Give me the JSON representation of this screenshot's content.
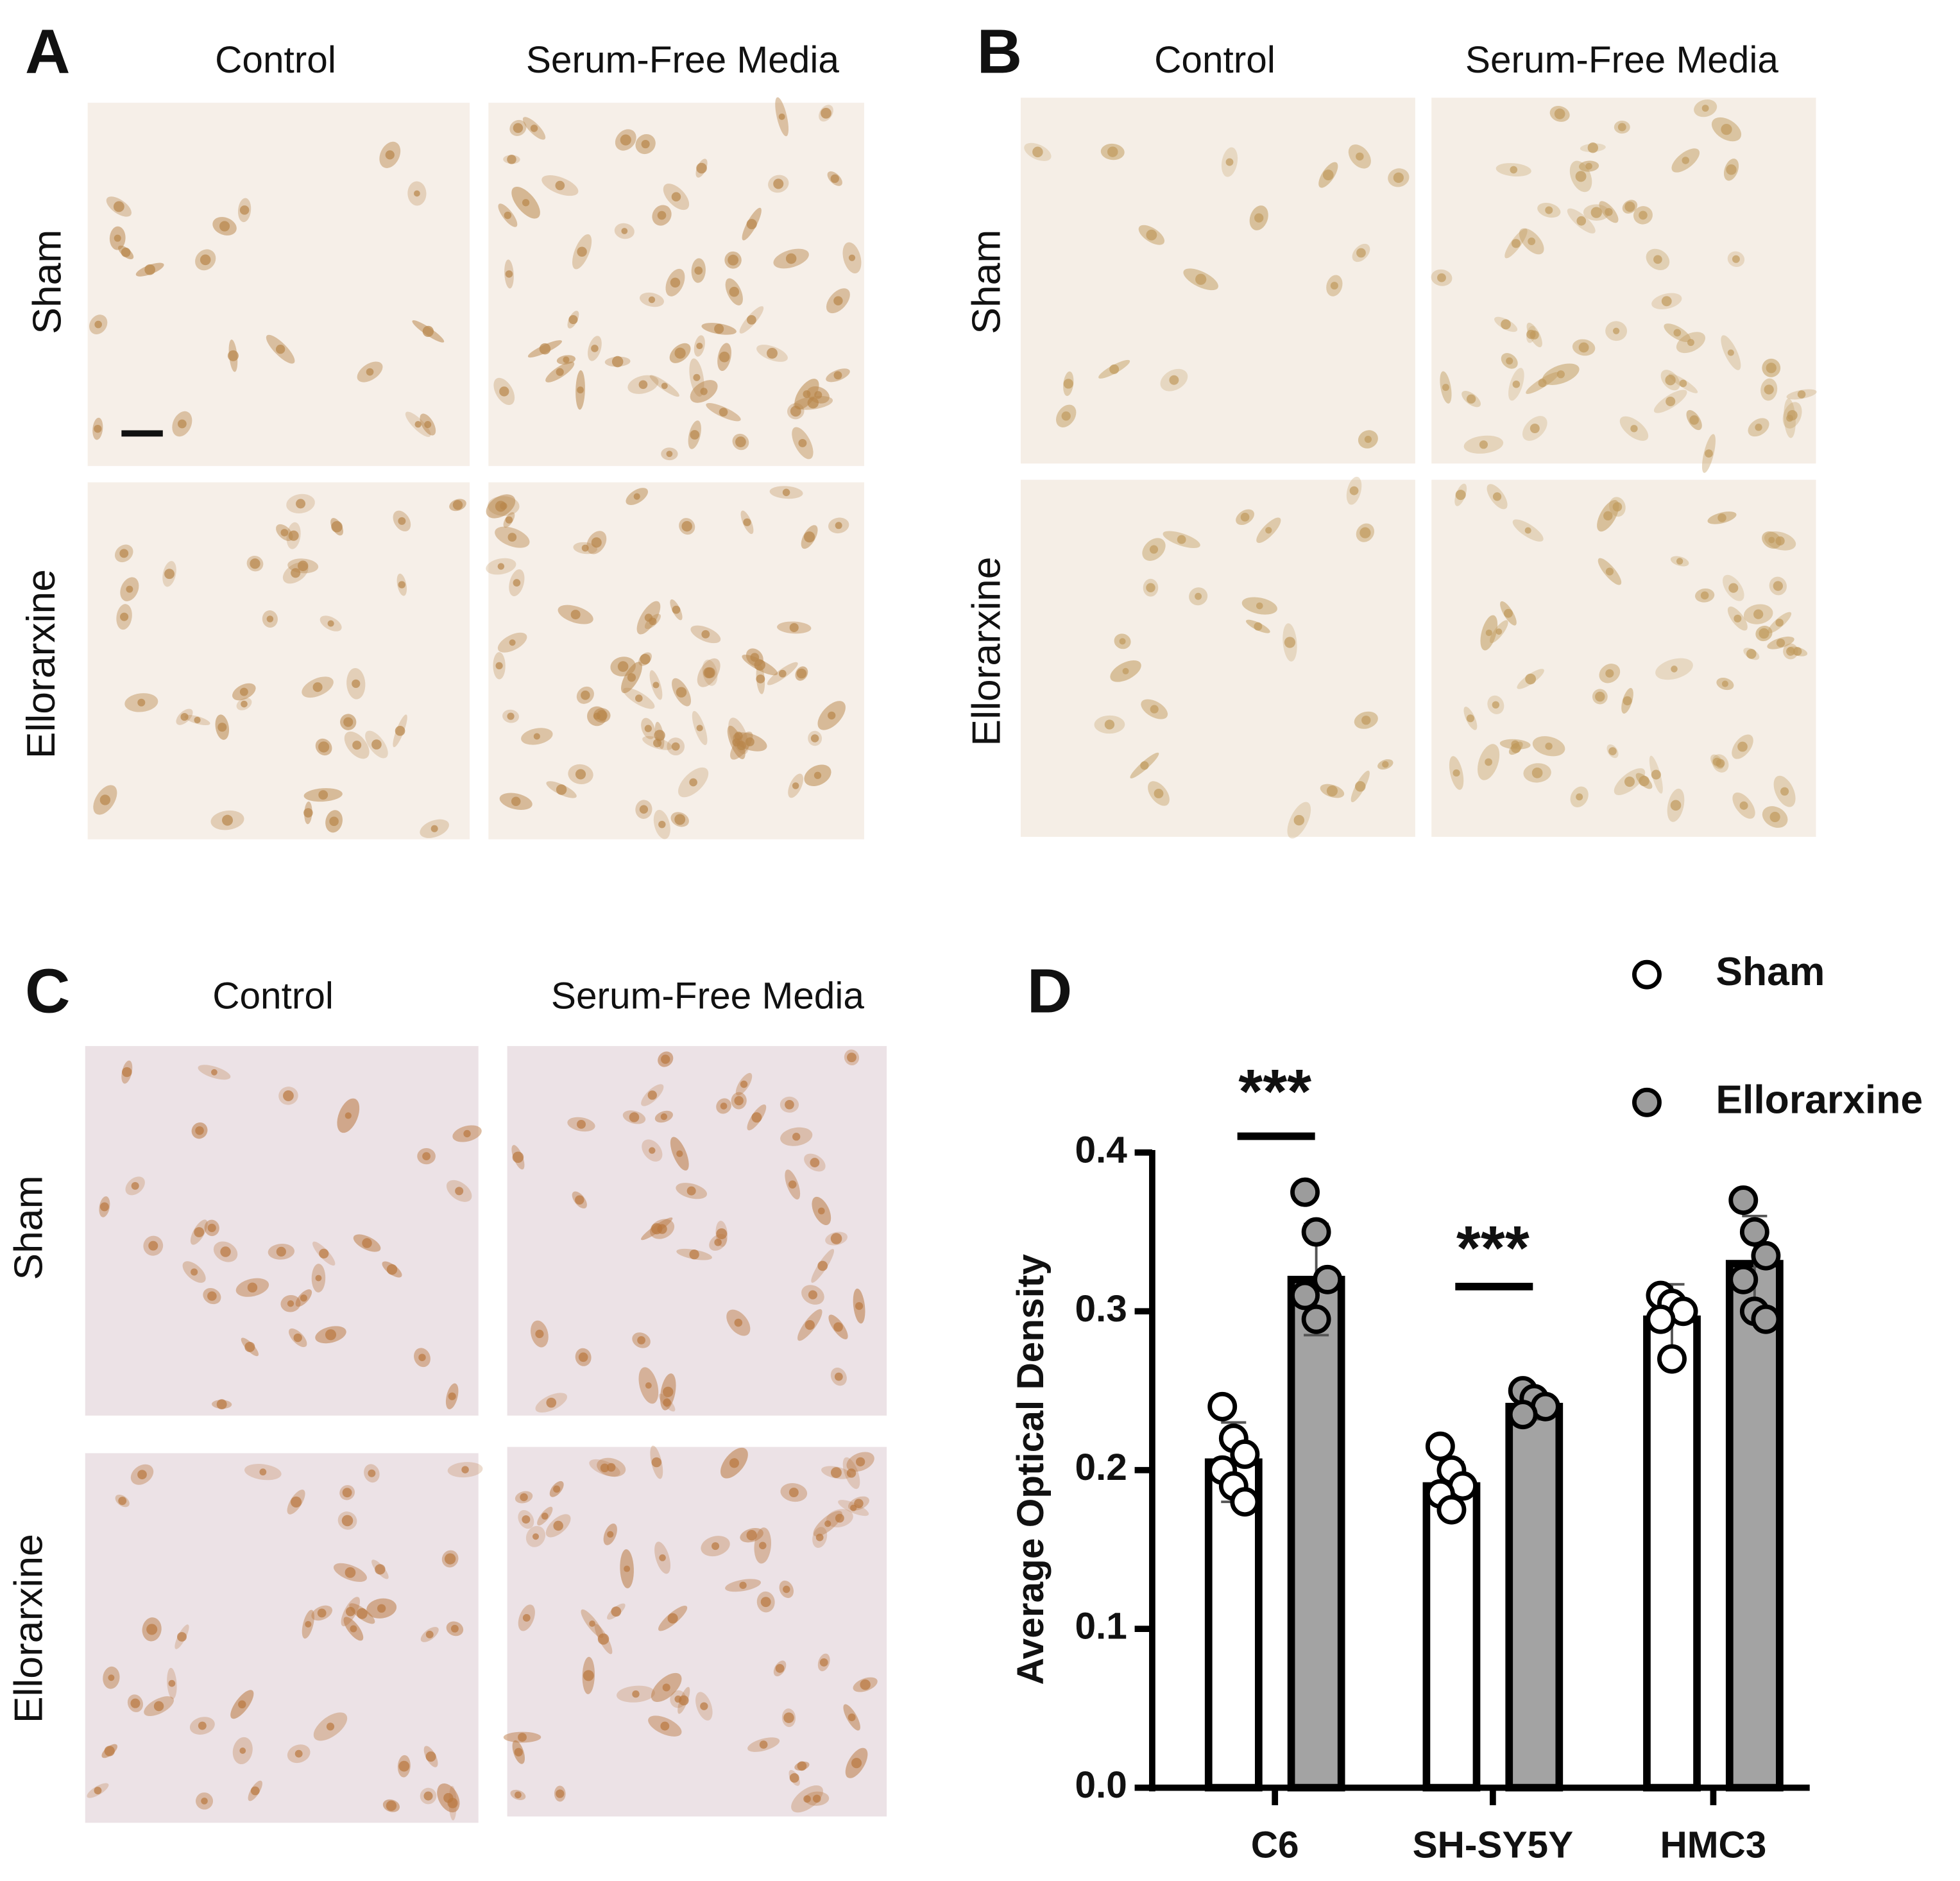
{
  "panels": [
    {
      "letter": "A",
      "columns": [
        "Control",
        "Serum-Free Media"
      ],
      "rows": [
        "Sham",
        "Ellorarxine"
      ]
    },
    {
      "letter": "B",
      "columns": [
        "Control",
        "Serum-Free Media"
      ],
      "rows": [
        "Sham",
        "Ellorarxine"
      ]
    },
    {
      "letter": "C",
      "columns": [
        "Control",
        "Serum-Free Media"
      ],
      "rows": [
        "Sham",
        "Ellorarxine"
      ]
    }
  ],
  "chart_data": {
    "type": "bar",
    "letter": "D",
    "y_label": "Average Optical Density",
    "categories": [
      "C6",
      "SH-SY5Y",
      "HMC3"
    ],
    "series": [
      {
        "name": "Sham",
        "color": "#ffffff",
        "values": [
          0.205,
          0.19,
          0.295
        ],
        "errors": [
          0.025,
          0.015,
          0.022
        ],
        "points": [
          [
            0.24,
            0.22,
            0.21,
            0.2,
            0.19,
            0.18
          ],
          [
            0.215,
            0.2,
            0.19,
            0.185,
            0.175
          ],
          [
            0.31,
            0.305,
            0.3,
            0.295,
            0.27
          ]
        ]
      },
      {
        "name": "Ellorarxine",
        "color": "#a3a3a3",
        "values": [
          0.32,
          0.24,
          0.33
        ],
        "errors": [
          0.035,
          0.008,
          0.03
        ],
        "points": [
          [
            0.375,
            0.35,
            0.32,
            0.31,
            0.295
          ],
          [
            0.25,
            0.245,
            0.24,
            0.235
          ],
          [
            0.37,
            0.35,
            0.335,
            0.32,
            0.3,
            0.295
          ]
        ]
      }
    ],
    "significance": [
      {
        "category": 0,
        "label": "***"
      },
      {
        "category": 1,
        "label": "***"
      }
    ],
    "ylim": [
      0,
      0.4
    ],
    "yticks": [
      {
        "value": 0,
        "label": "0.0"
      },
      {
        "value": 0.1,
        "label": "0.1"
      },
      {
        "value": 0.2,
        "label": "0.2"
      },
      {
        "value": 0.3,
        "label": "0.3"
      },
      {
        "value": 0.4,
        "label": "0.4"
      }
    ]
  }
}
